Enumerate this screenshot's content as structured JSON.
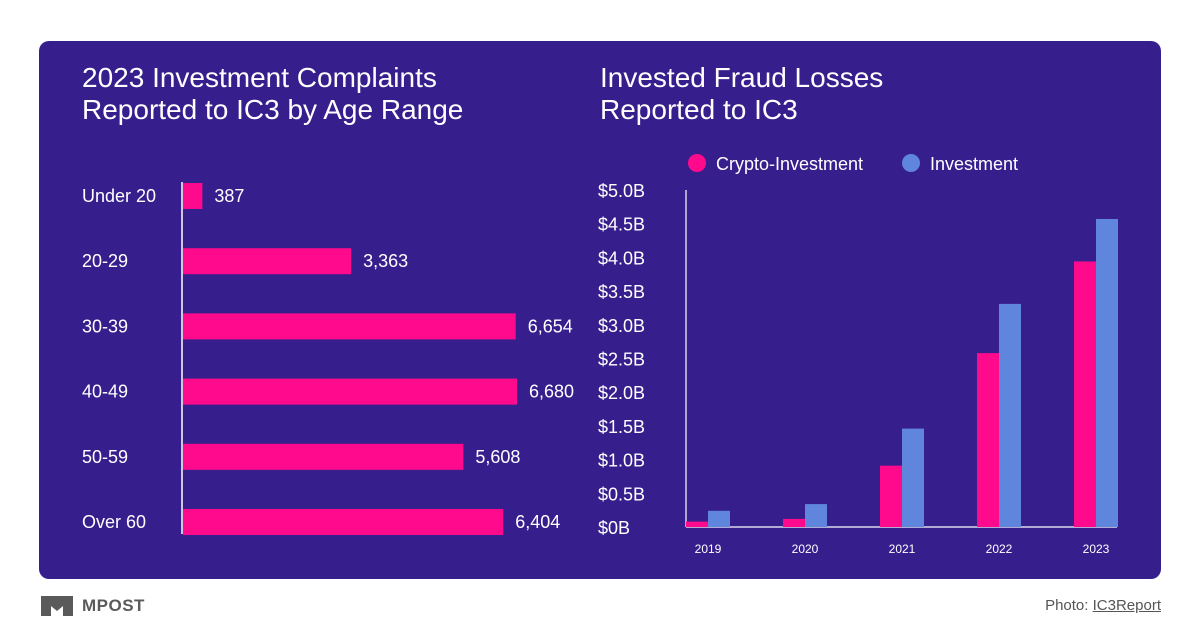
{
  "colors": {
    "background": "#361f8c",
    "crypto": "#ff0a8c",
    "investment": "#5f85dd",
    "text": "#ffffff"
  },
  "footer": {
    "logo_text": "MPOST",
    "credit_prefix": "Photo: ",
    "credit_link": "IC3Report"
  },
  "chart_data": [
    {
      "type": "bar",
      "orientation": "horizontal",
      "title": "2023 Investment Complaints\nReported to IC3 by Age Range",
      "categories": [
        "Under 20",
        "20-29",
        "30-39",
        "40-49",
        "50-59",
        "Over 60"
      ],
      "values": [
        387,
        3363,
        6654,
        6680,
        5608,
        6404
      ],
      "value_labels": [
        "387",
        "3,363",
        "6,654",
        "6,680",
        "5,608",
        "6,404"
      ],
      "xlim": [
        0,
        7000
      ],
      "grid": false
    },
    {
      "type": "bar",
      "title": "Invested Fraud Losses\nReported to IC3",
      "categories": [
        "2019",
        "2020",
        "2021",
        "2022",
        "2023"
      ],
      "series": [
        {
          "name": "Crypto-Investment",
          "values": [
            0.08,
            0.12,
            0.91,
            2.58,
            3.94
          ]
        },
        {
          "name": "Investment",
          "values": [
            0.24,
            0.34,
            1.46,
            3.31,
            4.57
          ]
        }
      ],
      "y_ticks": [
        "$0B",
        "$0.5B",
        "$1.0B",
        "$1.5B",
        "$2.0B",
        "$2.5B",
        "$3.0B",
        "$3.5B",
        "$4.0B",
        "$4.5B",
        "$5.0B"
      ],
      "ylim": [
        0,
        5
      ],
      "legend": "top",
      "grid": false
    }
  ]
}
